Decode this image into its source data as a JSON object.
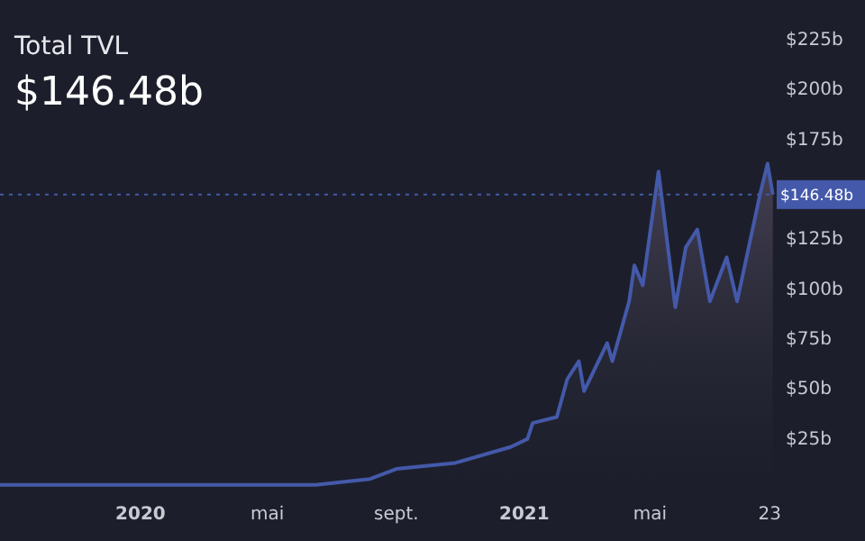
{
  "chart_data": {
    "type": "area",
    "title": "Total TVL",
    "subtitle": "$146.48b",
    "x": [
      "2019-08-20",
      "2019-11-01",
      "2020-02-01",
      "2020-04-01",
      "2020-06-16",
      "2020-08-07",
      "2020-09-01",
      "2020-10-27",
      "2020-12-19",
      "2021-01-04",
      "2021-01-09",
      "2021-02-01",
      "2021-02-11",
      "2021-02-22",
      "2021-02-27",
      "2021-03-21",
      "2021-03-26",
      "2021-04-11",
      "2021-04-16",
      "2021-04-24",
      "2021-05-09",
      "2021-05-25",
      "2021-06-04",
      "2021-06-15",
      "2021-06-27",
      "2021-07-13",
      "2021-07-23",
      "2021-08-14",
      "2021-08-21",
      "2021-08-26"
    ],
    "series": [
      {
        "color": "#4459a9",
        "values": [
          1,
          1,
          1,
          1,
          1,
          4,
          9,
          12,
          20,
          24,
          32,
          35,
          54,
          63,
          48,
          72,
          63,
          93,
          111,
          101,
          158,
          90,
          120,
          129,
          93,
          115,
          93,
          147,
          162,
          146.48
        ]
      }
    ],
    "xlim": [
      "2019-08-20",
      "2021-08-28"
    ],
    "xticks": [
      {
        "value": "2020-01-01",
        "label": "2020"
      },
      {
        "value": "2020-05-01",
        "label": "mai"
      },
      {
        "value": "2020-09-01",
        "label": "sept."
      },
      {
        "value": "2021-01-01",
        "label": "2021"
      },
      {
        "value": "2021-05-01",
        "label": "mai"
      },
      {
        "value": "2021-08-23",
        "label": "23"
      }
    ],
    "ylim": [
      0,
      244
    ],
    "yticks": [
      {
        "value": 25,
        "label": "$25b"
      },
      {
        "value": 50,
        "label": "$50b"
      },
      {
        "value": 75,
        "label": "$75b"
      },
      {
        "value": 100,
        "label": "$100b"
      },
      {
        "value": 125,
        "label": "$125b"
      },
      {
        "value": 175,
        "label": "$175b"
      },
      {
        "value": 200,
        "label": "$200b"
      },
      {
        "value": 225,
        "label": "$225b"
      }
    ],
    "ref_lines": [
      {
        "axis": "y",
        "value": 146.48,
        "label": "$146.48b",
        "color": "#4459a9",
        "line_style": "dotted"
      }
    ],
    "grid": false
  }
}
